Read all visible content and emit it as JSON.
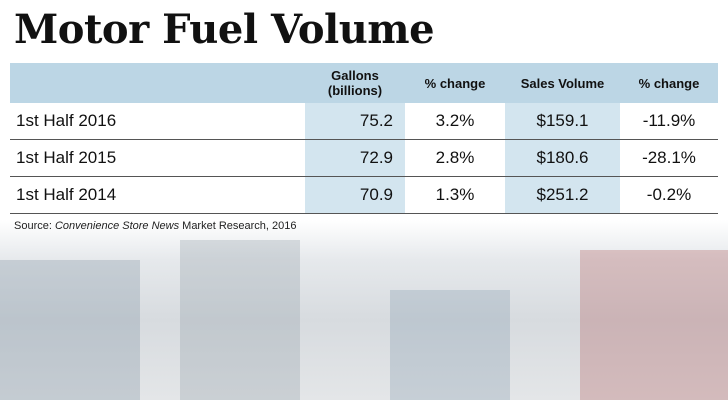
{
  "header": {
    "title": "Motor Fuel Volume"
  },
  "table": {
    "columns": [
      "Gallons (billions)",
      "% change",
      "Sales Volume",
      "% change"
    ],
    "rows": [
      [
        "1st Half 2016",
        "75.2",
        "3.2%",
        "$159.1",
        "-11.9%"
      ],
      [
        "1st Half 2015",
        "72.9",
        "2.8%",
        "$180.6",
        "-28.1%"
      ],
      [
        "1st Half 2014",
        "70.9",
        "1.3%",
        "$251.2",
        "-0.2%"
      ]
    ]
  },
  "source": [
    "Source: ",
    "Convenience Store News",
    " Market Research, 2016"
  ]
}
